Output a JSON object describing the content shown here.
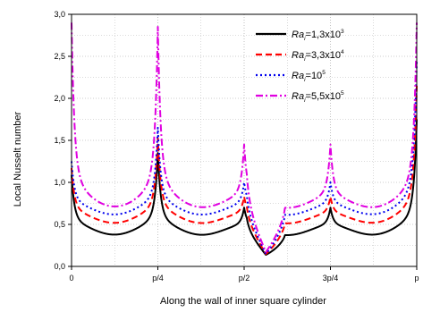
{
  "chart_data": {
    "type": "line",
    "xlabel": "Along the wall of inner square cylinder",
    "ylabel": "Local Nusselt number",
    "ylim": [
      0,
      3.0
    ],
    "y_ticks": [
      "0,0",
      "0,5",
      "1,0",
      "1,5",
      "2,0",
      "2,5",
      "3,0"
    ],
    "y_tick_values": [
      0,
      0.5,
      1.0,
      1.5,
      2.0,
      2.5,
      3.0
    ],
    "xlim": [
      0,
      1
    ],
    "x_ticks": [
      "0",
      "p/4",
      "p/2",
      "3p/4",
      "p"
    ],
    "x_tick_values": [
      0,
      0.25,
      0.5,
      0.75,
      1.0
    ],
    "grid": true,
    "legend_position": "top-right",
    "corner_peaks_x": [
      0.25,
      0.5,
      0.75
    ],
    "series": [
      {
        "name": "Ra_i=1,3x10^3",
        "legend_main": "Ra",
        "legend_sub": "i",
        "legend_rest": "=1,3x10",
        "legend_sup": "3",
        "color": "#000000",
        "dash": "",
        "width": 2,
        "min_level": 0.42,
        "valley_dip": 0.12,
        "flank_amp": 0.05,
        "peaks": [
          1.04,
          1.3,
          0.65,
          0.65,
          1.7
        ],
        "center_valley": 0.13
      },
      {
        "name": "Ra_i=3,3x10^4",
        "legend_main": "Ra",
        "legend_sub": "i",
        "legend_rest": "=3,3x10",
        "legend_sup": "4",
        "color": "#ff0000",
        "dash": "7,4",
        "width": 2,
        "min_level": 0.56,
        "valley_dip": 0.13,
        "flank_amp": 0.05,
        "peaks": [
          1.12,
          1.48,
          0.78,
          0.78,
          2.1
        ],
        "center_valley": 0.14
      },
      {
        "name": "Ra_i=10^5",
        "legend_main": "Ra",
        "legend_sub": "i",
        "legend_rest": "=10",
        "legend_sup": "5",
        "color": "#0000ee",
        "dash": "2,3",
        "width": 2,
        "min_level": 0.66,
        "valley_dip": 0.13,
        "flank_amp": 0.05,
        "peaks": [
          1.2,
          1.6,
          0.95,
          0.95,
          2.4
        ],
        "center_valley": 0.14
      },
      {
        "name": "Ra_i=5,5x10^5",
        "legend_main": "Ra",
        "legend_sub": "i",
        "legend_rest": "=5,5x10",
        "legend_sup": "5",
        "color": "#e000e0",
        "dash": "8,3,2,3",
        "width": 2,
        "min_level": 0.74,
        "valley_dip": 0.16,
        "flank_amp": 0.05,
        "peaks": [
          2.85,
          2.8,
          1.4,
          1.4,
          2.85
        ],
        "center_valley": 0.15
      }
    ]
  }
}
